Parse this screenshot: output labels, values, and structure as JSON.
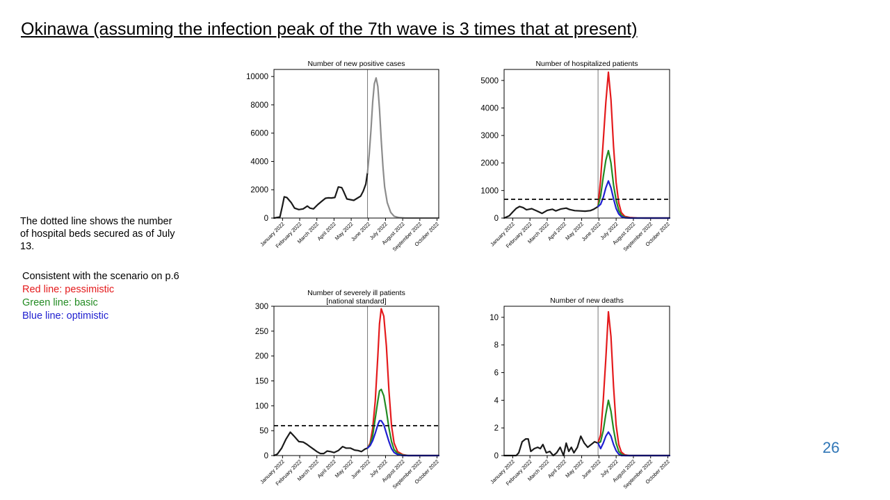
{
  "slide": {
    "title": "Okinawa (assuming the infection peak of the 7th wave is 3 times that at present)",
    "note": "The dotted line shows the number of hospital beds secured as of July 13.",
    "legend": {
      "heading": "Consistent with the scenario on p.6",
      "red": "Red line: pessimistic",
      "green": "Green line: basic",
      "blue": "Blue line: optimistic"
    },
    "page_number": "26"
  },
  "colors": {
    "actual": "#1a1a1a",
    "projection_single": "#8c8c8c",
    "pessimistic": "#e41a1c",
    "basic": "#228b22",
    "optimistic": "#1f1fd0",
    "page_number": "#2e75b6"
  },
  "chart_data": [
    {
      "type": "line",
      "title": "Number of new positive cases",
      "x_tick_labels": [
        "January 2022",
        "February 2022",
        "March 2022",
        "April 2022",
        "May 2022",
        "June 2022",
        "July 2022",
        "August 2022",
        "September 2022",
        "October 2022"
      ],
      "xlim": [
        0,
        9.6
      ],
      "ylim": [
        0,
        10500
      ],
      "y_ticks": [
        0,
        2000,
        4000,
        6000,
        8000,
        10000
      ],
      "current_date_x": 5.45,
      "series": [
        {
          "role": "actual",
          "x": [
            0,
            0.35,
            0.5,
            0.6,
            0.75,
            1.0,
            1.2,
            1.45,
            1.7,
            1.95,
            2.1,
            2.3,
            2.55,
            2.8,
            3.0,
            3.15,
            3.35,
            3.55,
            3.75,
            3.95,
            4.05,
            4.25,
            4.45,
            4.65,
            4.85,
            5.05,
            5.2,
            5.35,
            5.45
          ],
          "y": [
            0,
            80,
            900,
            1500,
            1450,
            1100,
            700,
            600,
            650,
            850,
            700,
            650,
            950,
            1200,
            1400,
            1430,
            1420,
            1450,
            2200,
            2150,
            1900,
            1350,
            1300,
            1250,
            1400,
            1550,
            1900,
            2400,
            3200
          ]
        },
        {
          "role": "projection",
          "x": [
            5.45,
            5.55,
            5.65,
            5.75,
            5.85,
            5.95,
            6.05,
            6.15,
            6.25,
            6.35,
            6.45,
            6.6,
            6.8,
            7.0,
            7.3,
            7.6,
            8.0,
            9.6
          ],
          "y": [
            3200,
            4500,
            6200,
            8200,
            9500,
            9900,
            9300,
            7700,
            5500,
            3600,
            2200,
            1100,
            400,
            130,
            30,
            5,
            0,
            0
          ]
        }
      ]
    },
    {
      "type": "line",
      "title": "Number of hospitalized patients",
      "x_tick_labels": [
        "January 2022",
        "February 2022",
        "March 2022",
        "April 2022",
        "May 2022",
        "June 2022",
        "July 2022",
        "August 2022",
        "September 2022",
        "October 2022"
      ],
      "xlim": [
        0,
        9.6
      ],
      "ylim": [
        0,
        5400
      ],
      "y_ticks": [
        0,
        1000,
        2000,
        3000,
        4000,
        5000
      ],
      "current_date_x": 5.45,
      "beds_secured": 680,
      "series": [
        {
          "role": "actual",
          "x": [
            0,
            0.3,
            0.5,
            0.7,
            0.9,
            1.1,
            1.3,
            1.6,
            1.9,
            2.2,
            2.5,
            2.8,
            3.0,
            3.3,
            3.6,
            3.8,
            4.1,
            4.4,
            4.7,
            5.0,
            5.2,
            5.45
          ],
          "y": [
            0,
            80,
            220,
            350,
            420,
            380,
            300,
            340,
            260,
            170,
            280,
            320,
            260,
            330,
            360,
            310,
            270,
            260,
            250,
            270,
            320,
            420
          ]
        },
        {
          "role": "pessimistic",
          "x": [
            5.45,
            5.6,
            5.75,
            5.9,
            6.05,
            6.2,
            6.35,
            6.5,
            6.65,
            6.8,
            7.0,
            7.3,
            7.7,
            8.2,
            9.6
          ],
          "y": [
            420,
            1400,
            2800,
            4200,
            5300,
            4300,
            2600,
            1300,
            550,
            200,
            60,
            20,
            5,
            0,
            0
          ]
        },
        {
          "role": "basic",
          "x": [
            5.45,
            5.6,
            5.75,
            5.9,
            6.05,
            6.2,
            6.35,
            6.5,
            6.65,
            6.8,
            7.0,
            7.3,
            7.7,
            9.6
          ],
          "y": [
            420,
            800,
            1500,
            2100,
            2450,
            2000,
            1200,
            650,
            280,
            100,
            30,
            5,
            0,
            0
          ]
        },
        {
          "role": "optimistic",
          "x": [
            5.45,
            5.6,
            5.75,
            5.9,
            6.05,
            6.2,
            6.35,
            6.5,
            6.65,
            6.8,
            7.0,
            7.3,
            9.6
          ],
          "y": [
            420,
            500,
            750,
            1100,
            1350,
            1100,
            700,
            350,
            150,
            50,
            10,
            0,
            0
          ]
        }
      ]
    },
    {
      "type": "line",
      "title_lines": [
        "Number of severely ill patients",
        "[national standard]"
      ],
      "x_tick_labels": [
        "January 2022",
        "February 2022",
        "March 2022",
        "April 2022",
        "May 2022",
        "June 2022",
        "July 2022",
        "August 2022",
        "September 2022",
        "October 2022"
      ],
      "xlim": [
        0,
        9.6
      ],
      "ylim": [
        0,
        300
      ],
      "y_ticks": [
        0,
        50,
        100,
        150,
        200,
        250,
        300
      ],
      "current_date_x": 5.45,
      "beds_secured": 60,
      "series": [
        {
          "role": "actual",
          "x": [
            0,
            0.2,
            0.45,
            0.7,
            0.95,
            1.2,
            1.45,
            1.7,
            1.9,
            2.1,
            2.3,
            2.5,
            2.7,
            2.9,
            3.1,
            3.3,
            3.5,
            3.75,
            4.0,
            4.2,
            4.45,
            4.7,
            4.9,
            5.1,
            5.3,
            5.45
          ],
          "y": [
            0,
            3,
            15,
            33,
            47,
            38,
            28,
            27,
            23,
            18,
            13,
            8,
            4,
            4,
            9,
            8,
            6,
            10,
            18,
            15,
            15,
            11,
            10,
            8,
            13,
            15
          ]
        },
        {
          "role": "pessimistic",
          "x": [
            5.45,
            5.6,
            5.75,
            5.9,
            6.05,
            6.15,
            6.25,
            6.4,
            6.55,
            6.7,
            6.85,
            7.0,
            7.2,
            7.5,
            7.8,
            8.2,
            9.6
          ],
          "y": [
            15,
            25,
            55,
            110,
            200,
            265,
            295,
            280,
            220,
            130,
            60,
            25,
            8,
            2,
            0,
            0,
            0
          ]
        },
        {
          "role": "basic",
          "x": [
            5.45,
            5.6,
            5.75,
            5.9,
            6.05,
            6.15,
            6.25,
            6.4,
            6.55,
            6.7,
            6.85,
            7.0,
            7.2,
            7.5,
            7.8,
            9.6
          ],
          "y": [
            15,
            22,
            40,
            75,
            110,
            130,
            133,
            120,
            90,
            55,
            28,
            12,
            4,
            1,
            0,
            0
          ]
        },
        {
          "role": "optimistic",
          "x": [
            5.45,
            5.6,
            5.75,
            5.9,
            6.05,
            6.15,
            6.25,
            6.4,
            6.55,
            6.7,
            6.85,
            7.0,
            7.2,
            7.5,
            9.6
          ],
          "y": [
            15,
            20,
            30,
            45,
            62,
            70,
            70,
            62,
            45,
            28,
            14,
            6,
            2,
            0,
            0
          ]
        }
      ]
    },
    {
      "type": "line",
      "title": "Number of new deaths",
      "x_tick_labels": [
        "January 2022",
        "February 2022",
        "March 2022",
        "April 2022",
        "May 2022",
        "June 2022",
        "July 2022",
        "August 2022",
        "September 2022",
        "October 2022"
      ],
      "xlim": [
        0,
        9.6
      ],
      "ylim": [
        0,
        10.8
      ],
      "y_ticks": [
        0,
        2,
        4,
        6,
        8,
        10
      ],
      "current_date_x": 5.45,
      "series": [
        {
          "role": "actual",
          "x": [
            0,
            0.7,
            0.85,
            1.05,
            1.25,
            1.4,
            1.55,
            1.75,
            1.95,
            2.1,
            2.25,
            2.45,
            2.65,
            2.85,
            3.05,
            3.25,
            3.45,
            3.6,
            3.75,
            3.9,
            4.05,
            4.25,
            4.45,
            4.65,
            4.85,
            5.05,
            5.25,
            5.45
          ],
          "y": [
            0,
            0,
            0.2,
            1.0,
            1.2,
            1.2,
            0.3,
            0.5,
            0.6,
            0.5,
            0.8,
            0.2,
            0.3,
            0,
            0.2,
            0.6,
            0,
            0.9,
            0.3,
            0.6,
            0.2,
            0.6,
            1.4,
            0.9,
            0.6,
            0.8,
            1.0,
            0.9
          ]
        },
        {
          "role": "pessimistic",
          "x": [
            5.45,
            5.6,
            5.75,
            5.9,
            6.05,
            6.2,
            6.35,
            6.5,
            6.65,
            6.8,
            7.0,
            7.25,
            7.6,
            8.0,
            9.6
          ],
          "y": [
            0.9,
            1.5,
            4.0,
            7.0,
            10.4,
            8.6,
            5.0,
            2.2,
            0.8,
            0.25,
            0.05,
            0,
            0,
            0,
            0
          ]
        },
        {
          "role": "basic",
          "x": [
            5.45,
            5.6,
            5.75,
            5.9,
            6.05,
            6.2,
            6.35,
            6.5,
            6.65,
            6.8,
            7.0,
            7.25,
            7.6,
            9.6
          ],
          "y": [
            0.9,
            1.0,
            1.8,
            3.0,
            4.0,
            3.2,
            1.9,
            0.9,
            0.3,
            0.1,
            0,
            0,
            0,
            0
          ]
        },
        {
          "role": "optimistic",
          "x": [
            5.45,
            5.6,
            5.75,
            5.9,
            6.05,
            6.2,
            6.35,
            6.5,
            6.65,
            6.8,
            7.0,
            7.3,
            9.6
          ],
          "y": [
            0.9,
            0.5,
            0.9,
            1.4,
            1.7,
            1.4,
            0.8,
            0.35,
            0.1,
            0,
            0,
            0,
            0
          ]
        }
      ]
    }
  ]
}
